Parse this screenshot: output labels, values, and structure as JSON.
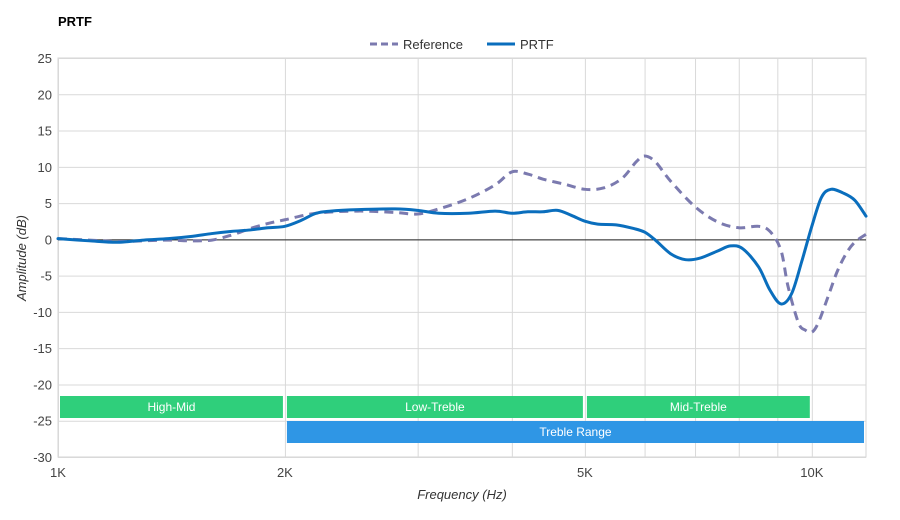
{
  "chart_data": {
    "type": "line",
    "title": "PRTF",
    "xlabel": "Frequency (Hz)",
    "ylabel": "Amplitude (dB)",
    "x_scale": "log",
    "xlim": [
      1000,
      11800
    ],
    "ylim": [
      -30,
      25
    ],
    "x_ticks": [
      {
        "value": 1000,
        "label": "1K"
      },
      {
        "value": 2000,
        "label": "2K"
      },
      {
        "value": 5000,
        "label": "5K"
      },
      {
        "value": 10000,
        "label": "10K"
      }
    ],
    "x_minor_gridlines": [
      3000,
      4000,
      6000,
      7000,
      8000,
      9000
    ],
    "y_ticks": [
      25,
      20,
      15,
      10,
      5,
      0,
      -5,
      -10,
      -15,
      -20,
      -25,
      -30
    ],
    "grid": true,
    "legend_position": "top-center",
    "series": [
      {
        "name": "Reference",
        "style": "dashed",
        "color": "#7b7aaf",
        "points": [
          [
            1000,
            0.1
          ],
          [
            1100,
            -0.1
          ],
          [
            1200,
            -0.3
          ],
          [
            1300,
            -0.2
          ],
          [
            1400,
            -0.1
          ],
          [
            1500,
            -0.2
          ],
          [
            1600,
            -0.1
          ],
          [
            1700,
            0.6
          ],
          [
            1800,
            1.5
          ],
          [
            1900,
            2.2
          ],
          [
            2000,
            2.7
          ],
          [
            2200,
            3.6
          ],
          [
            2500,
            3.9
          ],
          [
            2800,
            3.7
          ],
          [
            3000,
            3.5
          ],
          [
            3200,
            4.2
          ],
          [
            3500,
            5.6
          ],
          [
            3800,
            7.5
          ],
          [
            4000,
            9.3
          ],
          [
            4200,
            9.0
          ],
          [
            4400,
            8.3
          ],
          [
            4700,
            7.6
          ],
          [
            5000,
            6.9
          ],
          [
            5300,
            7.1
          ],
          [
            5600,
            8.4
          ],
          [
            5850,
            10.7
          ],
          [
            6000,
            11.5
          ],
          [
            6200,
            10.7
          ],
          [
            6500,
            8.0
          ],
          [
            7000,
            4.5
          ],
          [
            7500,
            2.4
          ],
          [
            8000,
            1.6
          ],
          [
            8500,
            1.8
          ],
          [
            8800,
            1.1
          ],
          [
            9100,
            -1.5
          ],
          [
            9300,
            -6.5
          ],
          [
            9600,
            -11.5
          ],
          [
            9800,
            -12.5
          ],
          [
            10000,
            -12.8
          ],
          [
            10200,
            -11.5
          ],
          [
            10500,
            -8.0
          ],
          [
            10800,
            -4.5
          ],
          [
            11100,
            -2.0
          ],
          [
            11400,
            -0.4
          ],
          [
            11800,
            0.7
          ]
        ]
      },
      {
        "name": "PRTF",
        "style": "solid",
        "color": "#0a6ebd",
        "points": [
          [
            1000,
            0.1
          ],
          [
            1100,
            -0.2
          ],
          [
            1200,
            -0.4
          ],
          [
            1300,
            -0.1
          ],
          [
            1400,
            0.1
          ],
          [
            1500,
            0.4
          ],
          [
            1600,
            0.8
          ],
          [
            1700,
            1.1
          ],
          [
            1800,
            1.3
          ],
          [
            1900,
            1.6
          ],
          [
            2000,
            1.8
          ],
          [
            2100,
            2.6
          ],
          [
            2200,
            3.6
          ],
          [
            2300,
            3.9
          ],
          [
            2500,
            4.1
          ],
          [
            2800,
            4.2
          ],
          [
            3000,
            4.0
          ],
          [
            3200,
            3.6
          ],
          [
            3500,
            3.6
          ],
          [
            3800,
            3.9
          ],
          [
            4000,
            3.6
          ],
          [
            4200,
            3.8
          ],
          [
            4400,
            3.8
          ],
          [
            4600,
            4.0
          ],
          [
            4800,
            3.3
          ],
          [
            5000,
            2.5
          ],
          [
            5200,
            2.1
          ],
          [
            5500,
            2.0
          ],
          [
            5800,
            1.5
          ],
          [
            6000,
            1.0
          ],
          [
            6200,
            -0.1
          ],
          [
            6500,
            -2.0
          ],
          [
            6800,
            -2.8
          ],
          [
            7100,
            -2.6
          ],
          [
            7500,
            -1.6
          ],
          [
            7800,
            -0.9
          ],
          [
            8100,
            -1.3
          ],
          [
            8500,
            -3.8
          ],
          [
            8800,
            -7.0
          ],
          [
            9100,
            -8.9
          ],
          [
            9400,
            -7.5
          ],
          [
            9700,
            -3.0
          ],
          [
            10000,
            1.8
          ],
          [
            10300,
            5.8
          ],
          [
            10600,
            6.9
          ],
          [
            11000,
            6.4
          ],
          [
            11400,
            5.4
          ],
          [
            11800,
            3.2
          ]
        ]
      }
    ],
    "bands": [
      {
        "label": "High-Mid",
        "start": 1000,
        "end": 2000,
        "row": 0,
        "color": "#2fcf7b"
      },
      {
        "label": "Low-Treble",
        "start": 2000,
        "end": 5000,
        "row": 0,
        "color": "#2fcf7b"
      },
      {
        "label": "Mid-Treble",
        "start": 5000,
        "end": 10000,
        "row": 0,
        "color": "#2fcf7b"
      },
      {
        "label": "Treble Range",
        "start": 2000,
        "end": 11800,
        "row": 1,
        "color": "#2f96e5"
      }
    ]
  }
}
